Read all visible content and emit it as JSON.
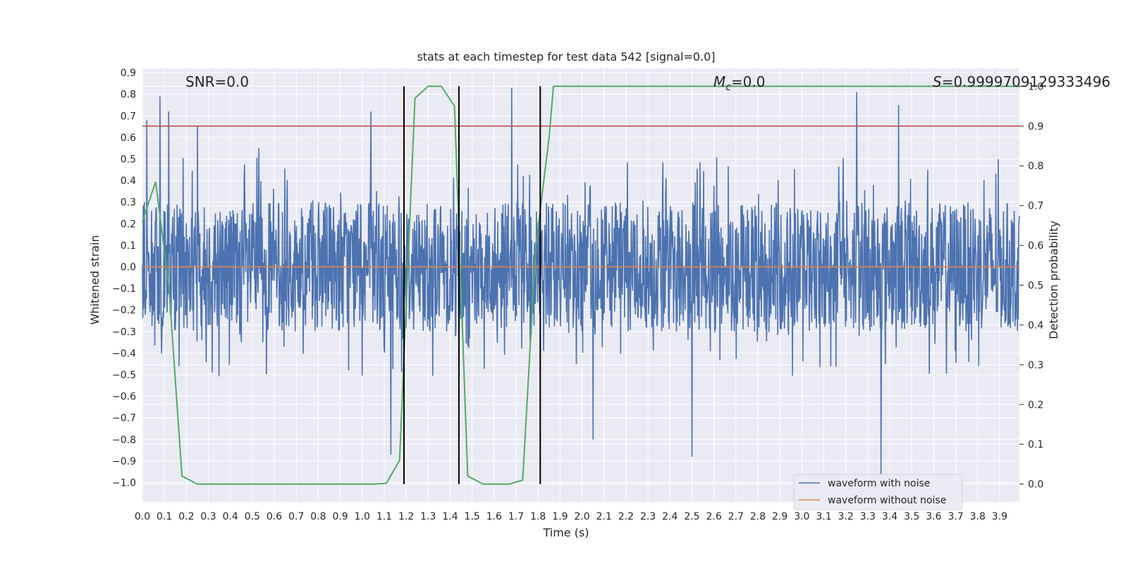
{
  "chart_data": {
    "type": "line",
    "title": "stats at each timestep for test data 542 [signal=0.0]",
    "xlabel": "Time (s)",
    "ylabel": "Whitened strain",
    "y2label": "Detection probability",
    "xlim": [
      0.0,
      3.99
    ],
    "ylim": [
      -1.09,
      0.92
    ],
    "y2lim": [
      -0.045,
      1.045
    ],
    "x_ticks": [
      0.0,
      0.1,
      0.2,
      0.3,
      0.4,
      0.5,
      0.6,
      0.7,
      0.8,
      0.9,
      1.0,
      1.1,
      1.2,
      1.3,
      1.4,
      1.5,
      1.6,
      1.7,
      1.8,
      1.9,
      2.0,
      2.1,
      2.2,
      2.3,
      2.4,
      2.5,
      2.6,
      2.7,
      2.8,
      2.9,
      3.0,
      3.1,
      3.2,
      3.3,
      3.4,
      3.5,
      3.6,
      3.7,
      3.8,
      3.9
    ],
    "y_ticks": [
      0.9,
      0.8,
      0.7,
      0.6,
      0.5,
      0.4,
      0.3,
      0.2,
      0.1,
      0.0,
      -0.1,
      -0.2,
      -0.3,
      -0.4,
      -0.5,
      -0.6,
      -0.7,
      -0.8,
      -0.9,
      -1.0
    ],
    "y2_ticks": [
      1.0,
      0.9,
      0.8,
      0.7,
      0.6,
      0.5,
      0.4,
      0.3,
      0.2,
      0.1,
      0.0
    ],
    "grid": true,
    "legend_position": "lower-right",
    "annotations": {
      "snr": "SNR=0.0",
      "mc_symbol": "M",
      "mc_subscript": "c",
      "mc_value": "=0.0",
      "s_symbol": "S",
      "s_value": "=0.9999709129333496"
    },
    "series": [
      {
        "name": "waveform with noise",
        "color": "#4c72b0",
        "description": "dense noise trace spanning 0.0 to 3.99 s",
        "peaks": [
          [
            0.02,
            0.68
          ],
          [
            0.08,
            0.79
          ],
          [
            0.12,
            0.72
          ],
          [
            0.25,
            0.65
          ],
          [
            0.53,
            0.55
          ],
          [
            1.04,
            0.72
          ],
          [
            1.13,
            -0.87
          ],
          [
            1.68,
            0.83
          ],
          [
            2.05,
            -0.8
          ],
          [
            2.5,
            -0.88
          ],
          [
            3.25,
            0.81
          ],
          [
            3.36,
            -0.96
          ],
          [
            3.44,
            0.75
          ]
        ],
        "amplitude_typical": 0.3
      },
      {
        "name": "waveform without noise",
        "color": "#dd8452",
        "x": [
          0.0,
          3.99
        ],
        "values": [
          0.0,
          0.0
        ]
      }
    ],
    "detection_probability": {
      "color": "#55a868",
      "x": [
        0.0,
        0.06,
        0.12,
        0.18,
        0.25,
        0.31,
        0.37,
        0.43,
        0.49,
        0.55,
        0.62,
        0.68,
        0.74,
        0.8,
        0.86,
        0.92,
        0.98,
        1.05,
        1.11,
        1.17,
        1.24,
        1.3,
        1.36,
        1.42,
        1.48,
        1.55,
        1.61,
        1.67,
        1.73,
        1.79,
        1.85,
        1.87,
        3.99
      ],
      "values": [
        0.66,
        0.76,
        0.5,
        0.02,
        0.0,
        0.0,
        0.0,
        0.0,
        0.0,
        0.0,
        0.0,
        0.0,
        0.0,
        0.0,
        0.0,
        0.0,
        0.0,
        0.0,
        0.002,
        0.06,
        0.97,
        1.0,
        1.0,
        0.95,
        0.02,
        0.0,
        0.0,
        0.0,
        0.01,
        0.6,
        0.87,
        1.0,
        1.0
      ]
    },
    "threshold": {
      "color": "#c44e52",
      "y2_value": 0.9
    },
    "vertical_markers": {
      "color": "#000000",
      "x": [
        1.19,
        1.44,
        1.81
      ]
    }
  }
}
